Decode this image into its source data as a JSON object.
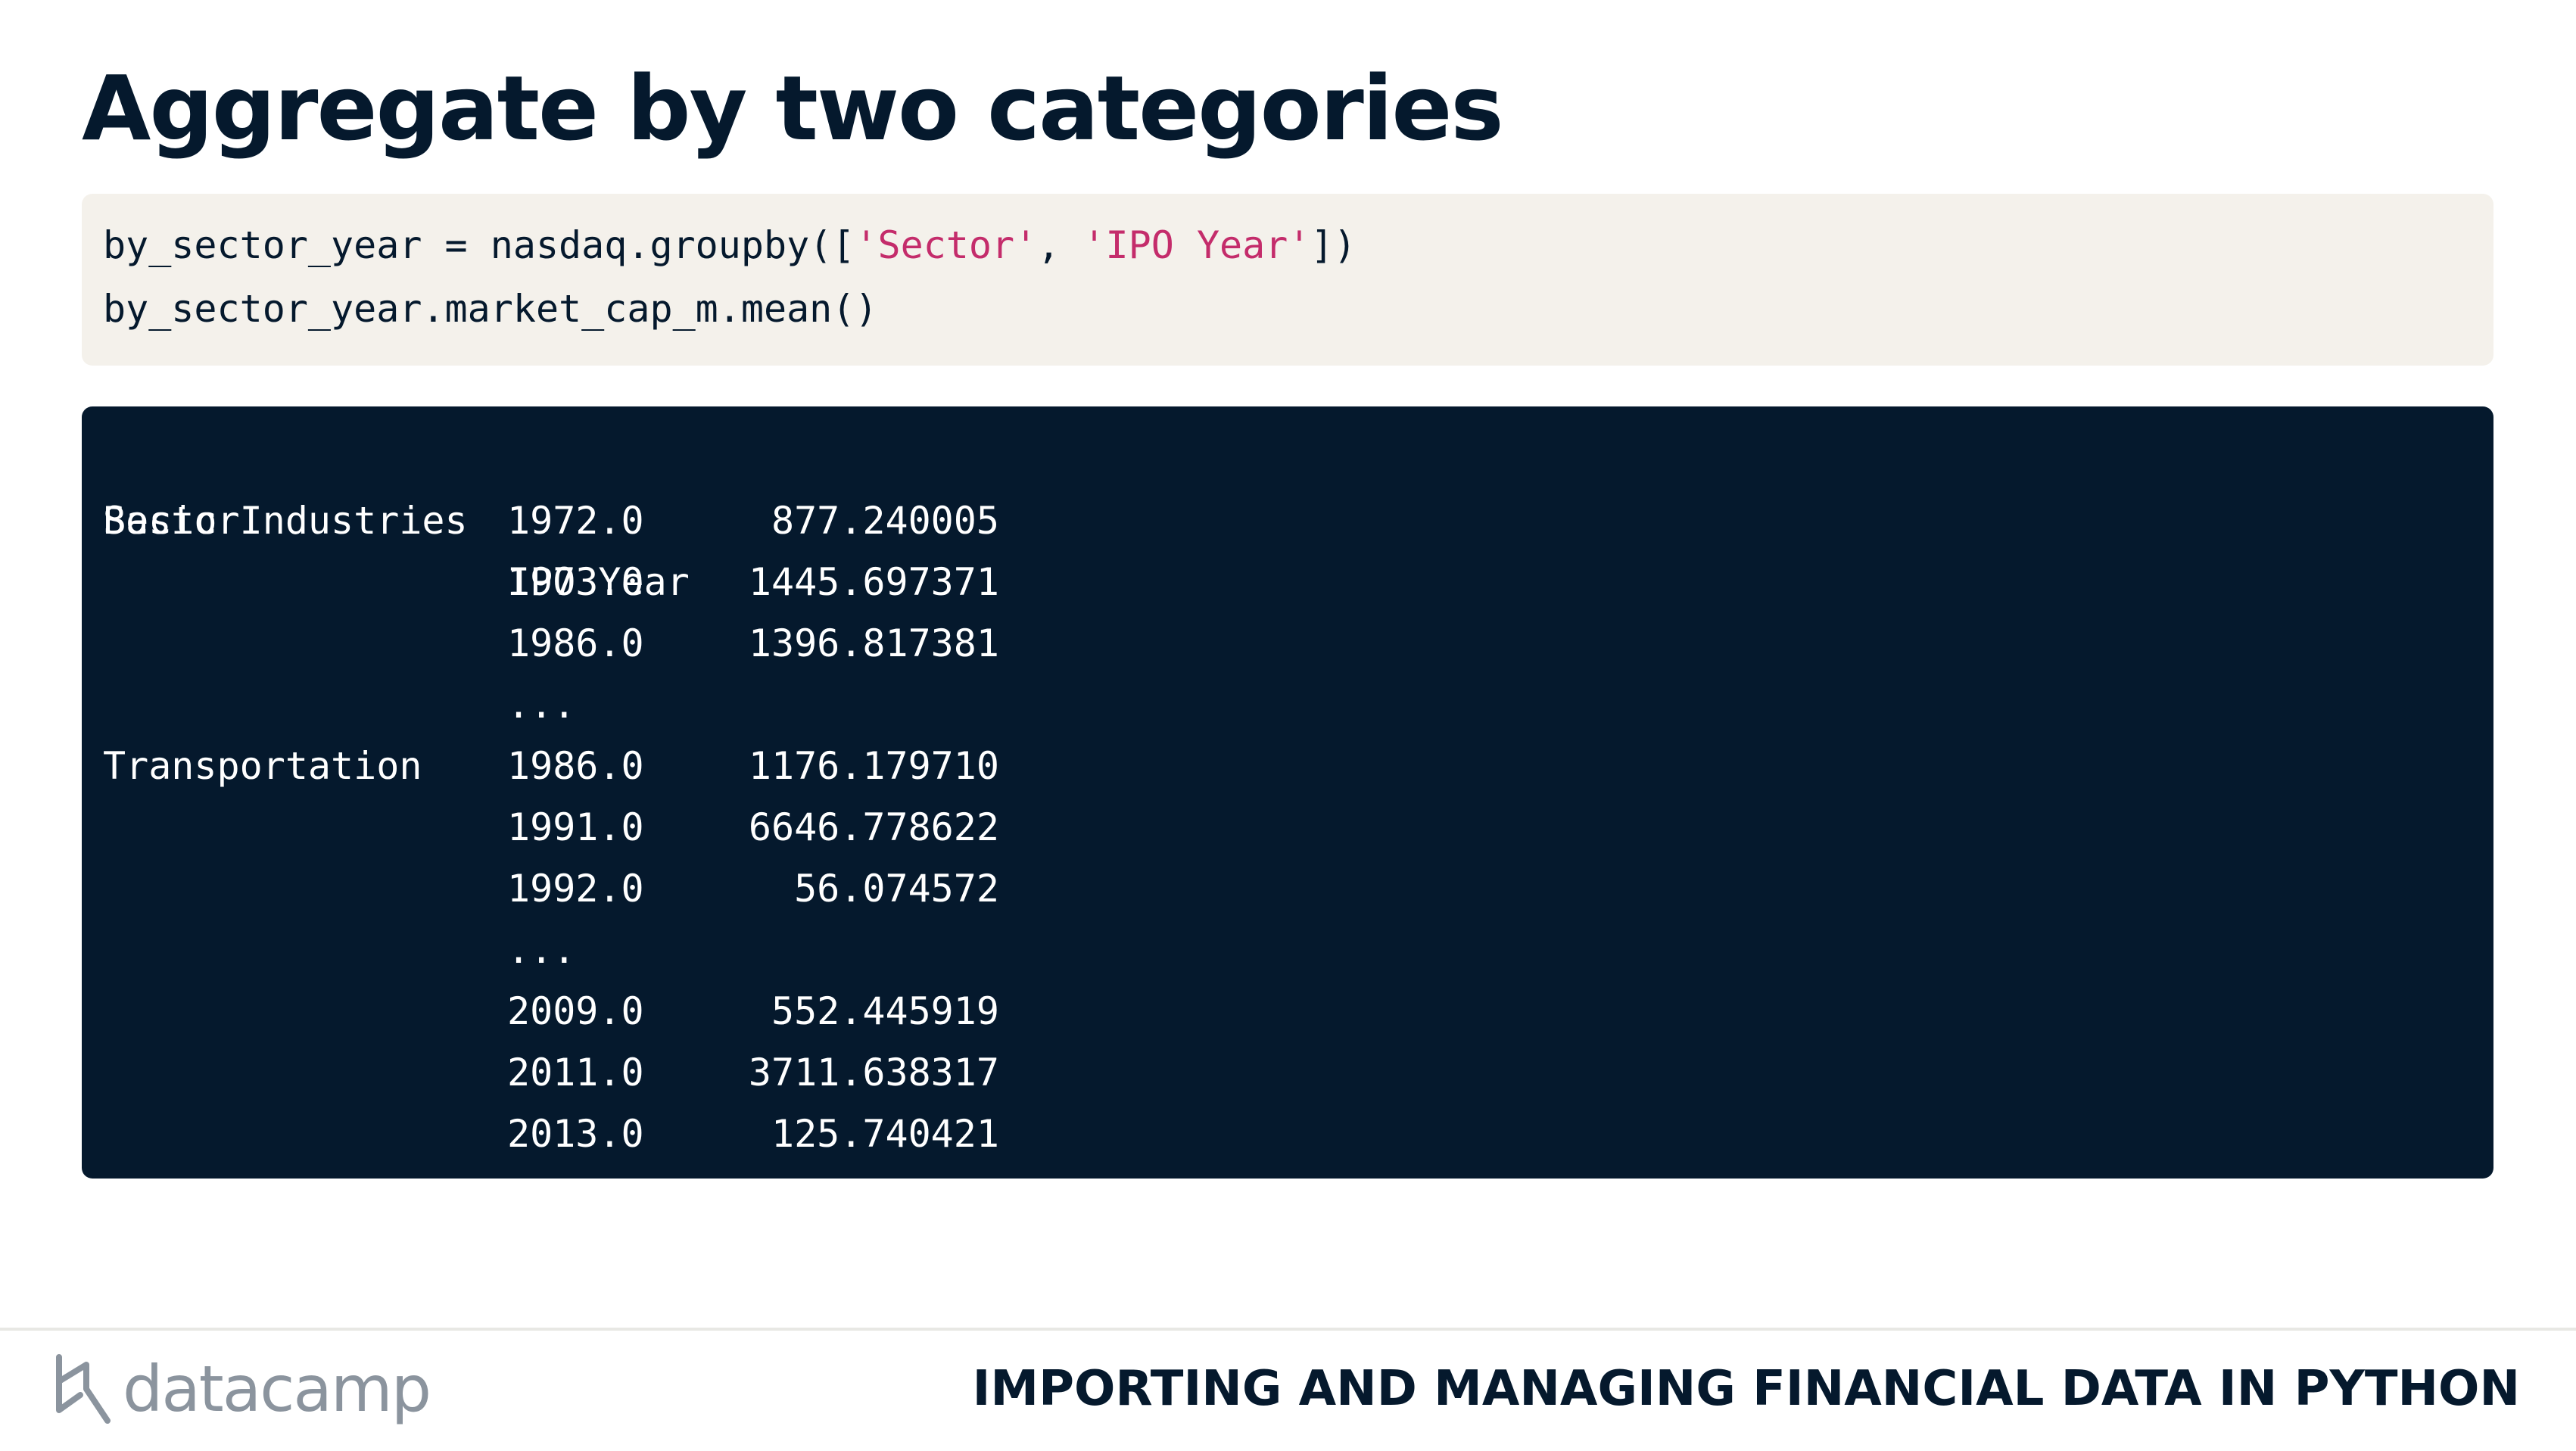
{
  "slide": {
    "title": "Aggregate by two categories"
  },
  "code": {
    "line1_a": "by_sector_year = nasdaq.groupby([",
    "line1_str1": "'Sector'",
    "line1_sep": ", ",
    "line1_str2": "'IPO Year'",
    "line1_b": "])",
    "line2": "by_sector_year.market_cap_m.mean()"
  },
  "output": {
    "header": {
      "sector": "Sector",
      "year": "IPO Year"
    },
    "rows": [
      {
        "sector": "Basic Industries",
        "year": "1972.0",
        "value": "877.240005"
      },
      {
        "sector": "",
        "year": "1973.0",
        "value": "1445.697371"
      },
      {
        "sector": "",
        "year": "1986.0",
        "value": "1396.817381"
      },
      {
        "sector": "",
        "year": "...",
        "value": ""
      },
      {
        "sector": "Transportation",
        "year": "1986.0",
        "value": "1176.179710"
      },
      {
        "sector": "",
        "year": "1991.0",
        "value": "6646.778622"
      },
      {
        "sector": "",
        "year": "1992.0",
        "value": "56.074572"
      },
      {
        "sector": "",
        "year": "...",
        "value": ""
      },
      {
        "sector": "",
        "year": "2009.0",
        "value": "552.445919"
      },
      {
        "sector": "",
        "year": "2011.0",
        "value": "3711.638317"
      },
      {
        "sector": "",
        "year": "2013.0",
        "value": "125.740421"
      }
    ]
  },
  "footer": {
    "brand": "datacamp",
    "course": "IMPORTING AND MANAGING FINANCIAL DATA IN PYTHON"
  },
  "colors": {
    "navy": "#05192d",
    "code_bg": "#f4f1eb",
    "string": "#c42c6b",
    "logo_gray": "#8b949e"
  }
}
